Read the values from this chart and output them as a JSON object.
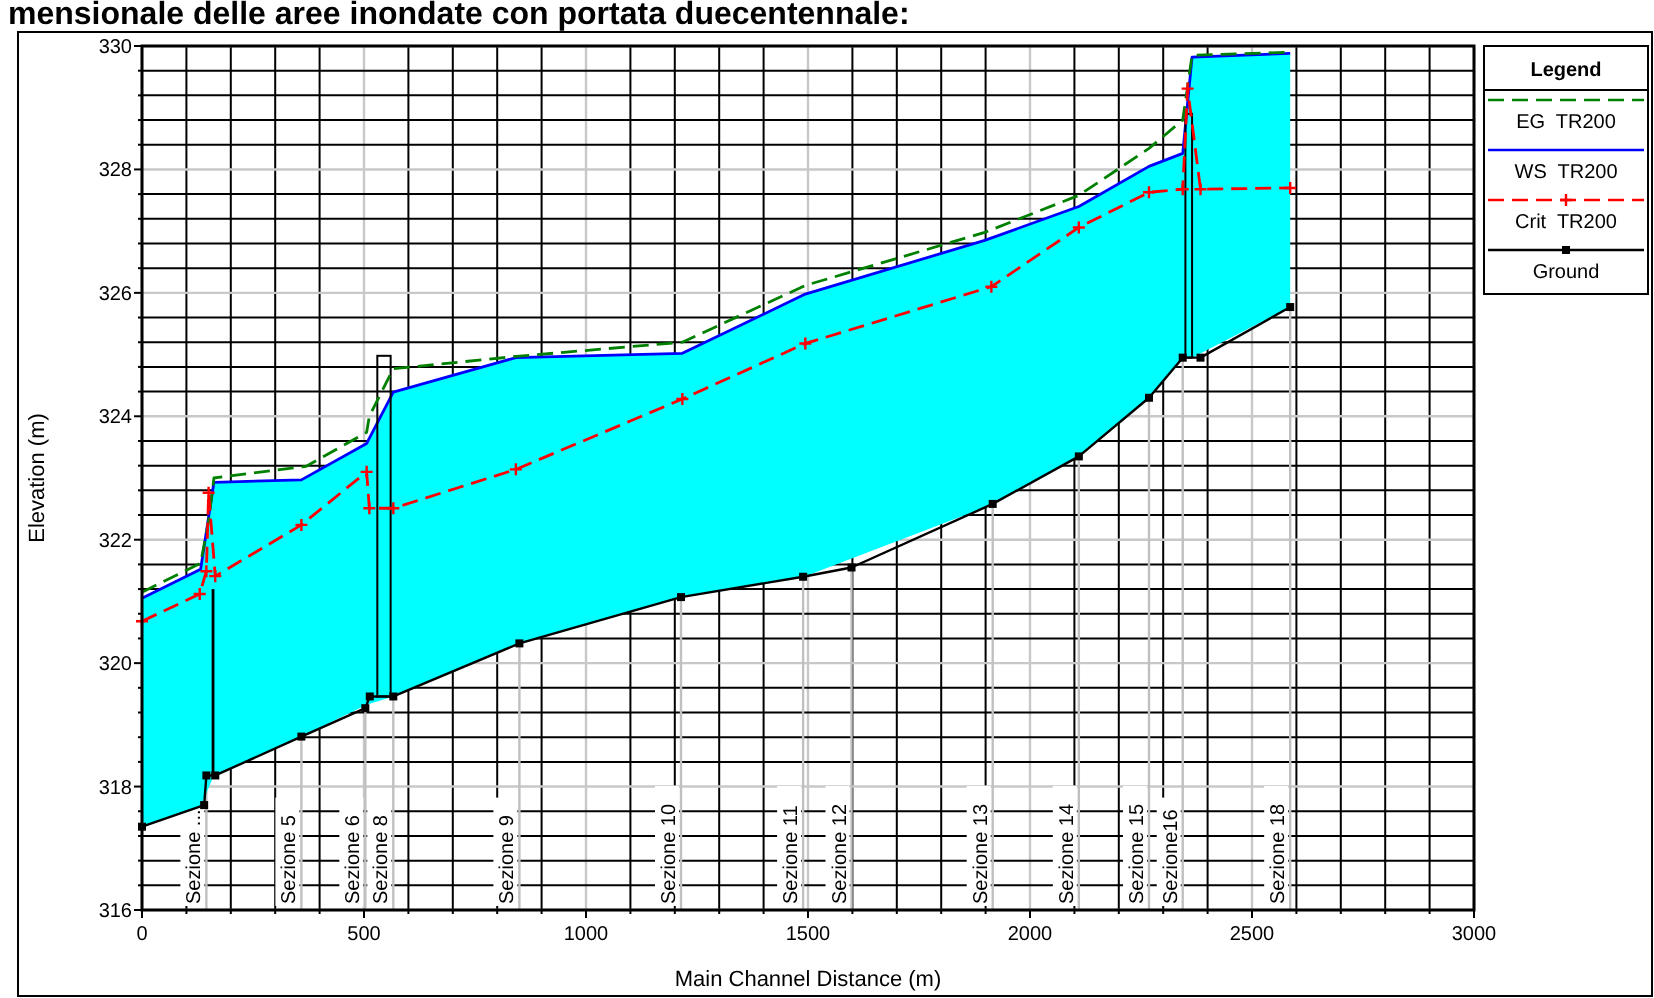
{
  "chart_data": {
    "type": "line",
    "title": "mensionale delle aree inondate con portata duecentennale:",
    "xlabel": "Main Channel Distance (m)",
    "ylabel": "Elevation (m)",
    "legend_title": "Legend",
    "xlim": [
      0,
      3000
    ],
    "xticks": [
      0,
      500,
      1000,
      1500,
      2000,
      2500,
      3000
    ],
    "ylim": [
      316,
      330
    ],
    "yticks": [
      316,
      318,
      320,
      322,
      324,
      326,
      328,
      330
    ],
    "grid": true,
    "legend": "right",
    "series": [
      {
        "name": "EG  TR200",
        "color": "#008000",
        "line_style": "dashed",
        "x": [
          0,
          132,
          150,
          162,
          370,
          506,
          512,
          566,
          842,
          1217,
          1494,
          1898,
          2110,
          2268,
          2344,
          2365,
          2586
        ],
        "values": [
          321.15,
          321.62,
          322.3,
          323.0,
          323.19,
          323.74,
          324.0,
          324.77,
          324.97,
          325.2,
          326.12,
          326.98,
          327.58,
          328.34,
          328.8,
          329.85,
          329.9
        ]
      },
      {
        "name": "WS  TR200",
        "type": "area",
        "color": "#0000ff",
        "colors": [
          "#00ffff",
          "#00ffff",
          "#00ffff",
          "#00ffff",
          "#00ffff",
          "#00ffff",
          "#00ffff",
          "#00ffff",
          "#00ffff",
          "#00ffff",
          "#00ffff",
          "#00ffff",
          "#00ffff",
          "#00ffff",
          "#00ffff"
        ],
        "x": [
          0,
          132,
          162,
          359,
          506,
          566,
          842,
          1217,
          1494,
          1898,
          2110,
          2268,
          2344,
          2365,
          2586
        ],
        "values": [
          321.05,
          321.52,
          322.93,
          322.97,
          323.56,
          324.39,
          324.95,
          325.02,
          325.98,
          326.85,
          327.4,
          328.05,
          328.26,
          329.82,
          329.88
        ]
      },
      {
        "name": "Crit  TR200",
        "color": "#ff0000",
        "line_style": "dashed",
        "marker": "cross",
        "x": [
          0,
          130,
          145,
          150,
          165,
          359,
          506,
          512,
          566,
          842,
          1217,
          1494,
          1913,
          2110,
          2268,
          2344,
          2355,
          2384,
          2586
        ],
        "values": [
          320.68,
          321.12,
          321.49,
          322.76,
          321.41,
          322.24,
          323.1,
          322.51,
          322.51,
          323.14,
          324.28,
          325.18,
          326.1,
          327.06,
          327.63,
          327.68,
          329.31,
          327.68,
          327.7
        ]
      },
      {
        "name": "Ground",
        "color": "#000000",
        "marker": "square",
        "x": [
          0,
          140,
          145,
          165,
          359,
          503,
          513,
          566,
          850,
          1214,
          1489,
          1598,
          1916,
          2110,
          2268,
          2344,
          2384,
          2586
        ],
        "values": [
          317.35,
          317.7,
          318.18,
          318.18,
          318.81,
          319.27,
          319.46,
          319.46,
          320.32,
          321.07,
          321.4,
          321.55,
          322.58,
          323.35,
          324.3,
          324.95,
          324.95,
          325.77
        ]
      },
      {
        "color": "#000000",
        "x": [
          160,
          160
        ],
        "values": [
          318.18,
          321.2
        ]
      }
    ],
    "annotations": [
      {
        "text": "Sezione ...",
        "x": 145
      },
      {
        "text": "Sezione 5",
        "x": 359
      },
      {
        "text": "Sezione 6",
        "x": 503
      },
      {
        "text": "Sezione 8",
        "x": 566
      },
      {
        "text": "Sezione 9",
        "x": 850
      },
      {
        "text": "Sezione 10",
        "x": 1214
      },
      {
        "text": "Sezione 11",
        "x": 1489
      },
      {
        "text": "Sezione 12",
        "x": 1598
      },
      {
        "text": "Sezione 13",
        "x": 1916
      },
      {
        "text": "Sezione 14",
        "x": 2110
      },
      {
        "text": "Sezione 15",
        "x": 2268
      },
      {
        "text": "Sezione16",
        "x": 2344
      },
      {
        "text": "Sezione 18",
        "x": 2586
      }
    ]
  }
}
